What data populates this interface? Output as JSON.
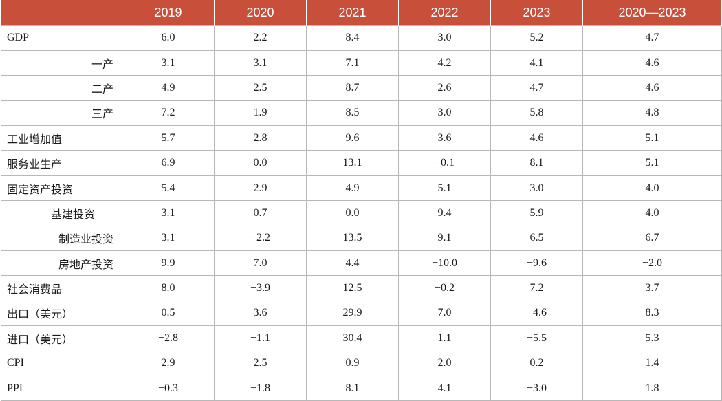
{
  "header": {
    "corner": "",
    "columns": [
      "2019",
      "2020",
      "2021",
      "2022",
      "2023",
      "2020—2023"
    ]
  },
  "rows": [
    {
      "label": "GDP",
      "values": [
        "6.0",
        "2.2",
        "8.4",
        "3.0",
        "5.2",
        "4.7"
      ]
    },
    {
      "label": "一产",
      "values": [
        "3.1",
        "3.1",
        "7.1",
        "4.2",
        "4.1",
        "4.6"
      ]
    },
    {
      "label": "二产",
      "values": [
        "4.9",
        "2.5",
        "8.7",
        "2.6",
        "4.7",
        "4.6"
      ]
    },
    {
      "label": "三产",
      "values": [
        "7.2",
        "1.9",
        "8.5",
        "3.0",
        "5.8",
        "4.8"
      ]
    },
    {
      "label": "工业增加值",
      "values": [
        "5.7",
        "2.8",
        "9.6",
        "3.6",
        "4.6",
        "5.1"
      ]
    },
    {
      "label": "服务业生产",
      "values": [
        "6.9",
        "0.0",
        "13.1",
        "−0.1",
        "8.1",
        "5.1"
      ]
    },
    {
      "label": "固定资产投资",
      "values": [
        "5.4",
        "2.9",
        "4.9",
        "5.1",
        "3.0",
        "4.0"
      ]
    },
    {
      "label": "基建投资",
      "values": [
        "3.1",
        "0.7",
        "0.0",
        "9.4",
        "5.9",
        "4.0"
      ]
    },
    {
      "label": "制造业投资",
      "values": [
        "3.1",
        "−2.2",
        "13.5",
        "9.1",
        "6.5",
        "6.7"
      ]
    },
    {
      "label": "房地产投资",
      "values": [
        "9.9",
        "7.0",
        "4.4",
        "−10.0",
        "−9.6",
        "−2.0"
      ]
    },
    {
      "label": "社会消费品",
      "values": [
        "8.0",
        "−3.9",
        "12.5",
        "−0.2",
        "7.2",
        "3.7"
      ]
    },
    {
      "label": "出口（美元）",
      "values": [
        "0.5",
        "3.6",
        "29.9",
        "7.0",
        "−4.6",
        "8.3"
      ]
    },
    {
      "label": "进口（美元）",
      "values": [
        "−2.8",
        "−1.1",
        "30.4",
        "1.1",
        "−5.5",
        "5.3"
      ]
    },
    {
      "label": "CPI",
      "values": [
        "2.9",
        "2.5",
        "0.9",
        "2.0",
        "0.2",
        "1.4"
      ]
    },
    {
      "label": "PPI",
      "values": [
        "−0.3",
        "−1.8",
        "8.1",
        "4.1",
        "−3.0",
        "1.8"
      ]
    }
  ]
}
